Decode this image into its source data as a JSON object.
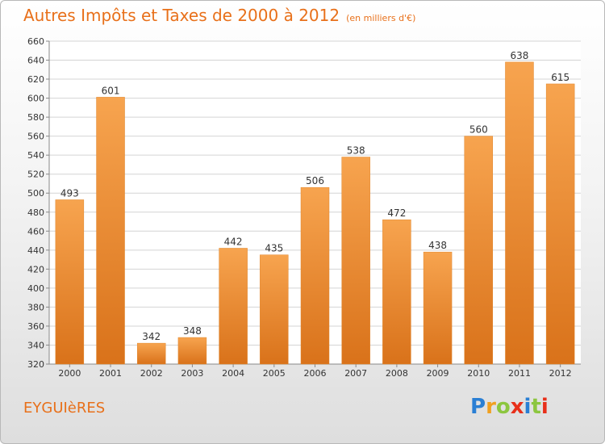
{
  "header": {
    "title": "Autres Impôts et Taxes de 2000 à 2012",
    "subtitle": "(en milliers d'€)"
  },
  "footer": {
    "town": "EYGUIèRES",
    "logo_letters": [
      "P",
      "r",
      "o",
      "x",
      "i",
      "t",
      "i"
    ],
    "logo_colors": [
      "#2a7fd4",
      "#f0a020",
      "#8cc63f",
      "#e8301a",
      "#2a7fd4",
      "#8cc63f",
      "#e8301a"
    ]
  },
  "chart_data": {
    "type": "bar",
    "categories": [
      "2000",
      "2001",
      "2002",
      "2003",
      "2004",
      "2005",
      "2006",
      "2007",
      "2008",
      "2009",
      "2010",
      "2011",
      "2012"
    ],
    "values": [
      493,
      601,
      342,
      348,
      442,
      435,
      506,
      538,
      472,
      438,
      560,
      638,
      615
    ],
    "ylim": [
      320,
      660
    ],
    "yticks": [
      320,
      340,
      360,
      380,
      400,
      420,
      440,
      460,
      480,
      500,
      520,
      540,
      560,
      580,
      600,
      620,
      640,
      660
    ],
    "grid": true,
    "bar_color_light": "#f7a44f",
    "bar_color_dark": "#d9721a"
  }
}
